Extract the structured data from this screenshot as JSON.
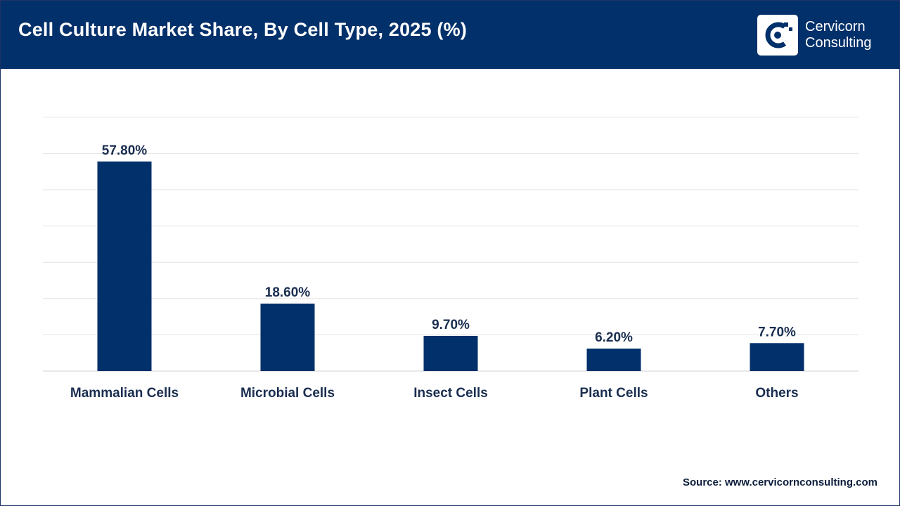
{
  "header": {
    "title": "Cell Culture Market Share, By Cell Type, 2025 (%)"
  },
  "logo": {
    "line1": "Cervicorn",
    "line2": "Consulting",
    "icon": "cervicorn-c-logo"
  },
  "colors": {
    "header_bg": "#02306a",
    "bar": "#02306a",
    "label": "#1a2e50",
    "grid": "#e3e3e3"
  },
  "chart_data": {
    "type": "bar",
    "categories": [
      "Mammalian Cells",
      "Microbial Cells",
      "Insect Cells",
      "Plant Cells",
      "Others"
    ],
    "values": [
      57.8,
      18.6,
      9.7,
      6.2,
      7.7
    ],
    "data_labels": [
      "57.80%",
      "18.60%",
      "9.70%",
      "6.20%",
      "7.70%"
    ],
    "ylim": [
      0,
      70
    ],
    "grid": true,
    "legend": "none"
  },
  "source": "Source: www.cervicornconsulting.com"
}
